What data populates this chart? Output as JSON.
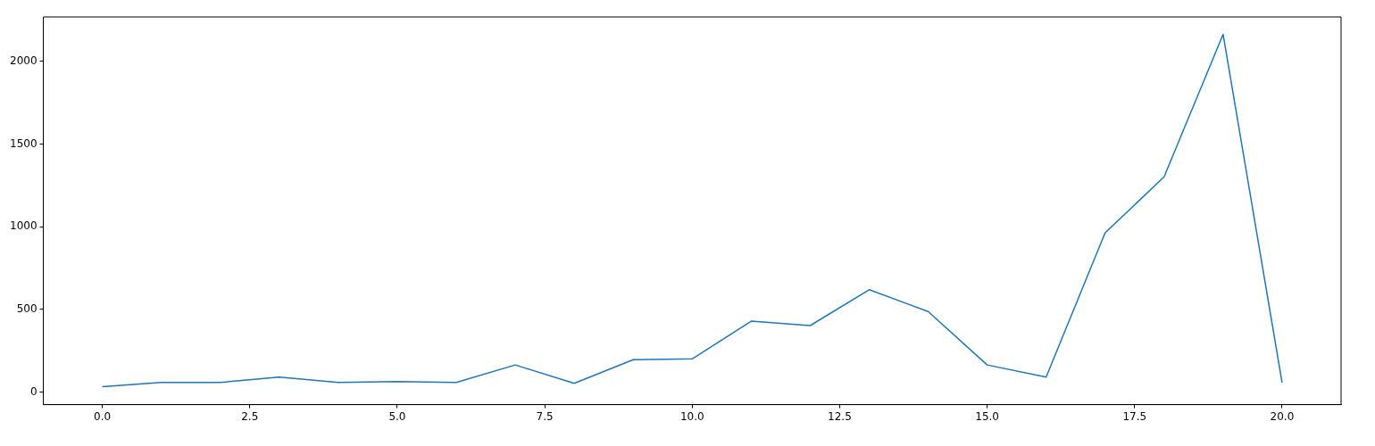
{
  "chart_data": {
    "type": "line",
    "x": [
      0,
      1,
      2,
      3,
      4,
      5,
      6,
      7,
      8,
      9,
      10,
      11,
      12,
      13,
      14,
      15,
      16,
      17,
      18,
      19,
      20
    ],
    "series": [
      {
        "color": "#1f77b4",
        "values": [
          32,
          58,
          58,
          90,
          58,
          63,
          58,
          164,
          53,
          196,
          201,
          429,
          402,
          619,
          487,
          164,
          90,
          963,
          1302,
          2164,
          58
        ]
      }
    ],
    "xlim": [
      -1,
      21
    ],
    "xticks": [
      {
        "value": 0,
        "label": "0.0"
      },
      {
        "value": 2.5,
        "label": "2.5"
      },
      {
        "value": 5,
        "label": "5.0"
      },
      {
        "value": 7.5,
        "label": "7.5"
      },
      {
        "value": 10,
        "label": "10.0"
      },
      {
        "value": 12.5,
        "label": "12.5"
      },
      {
        "value": 15,
        "label": "15.0"
      },
      {
        "value": 17.5,
        "label": "17.5"
      },
      {
        "value": 20,
        "label": "20.0"
      }
    ],
    "ylim": [
      -76,
      2269
    ],
    "yticks": [
      0,
      500,
      1000,
      1500,
      2000
    ],
    "grid": false,
    "legend": false,
    "marker": "none",
    "line_style": "solid"
  }
}
